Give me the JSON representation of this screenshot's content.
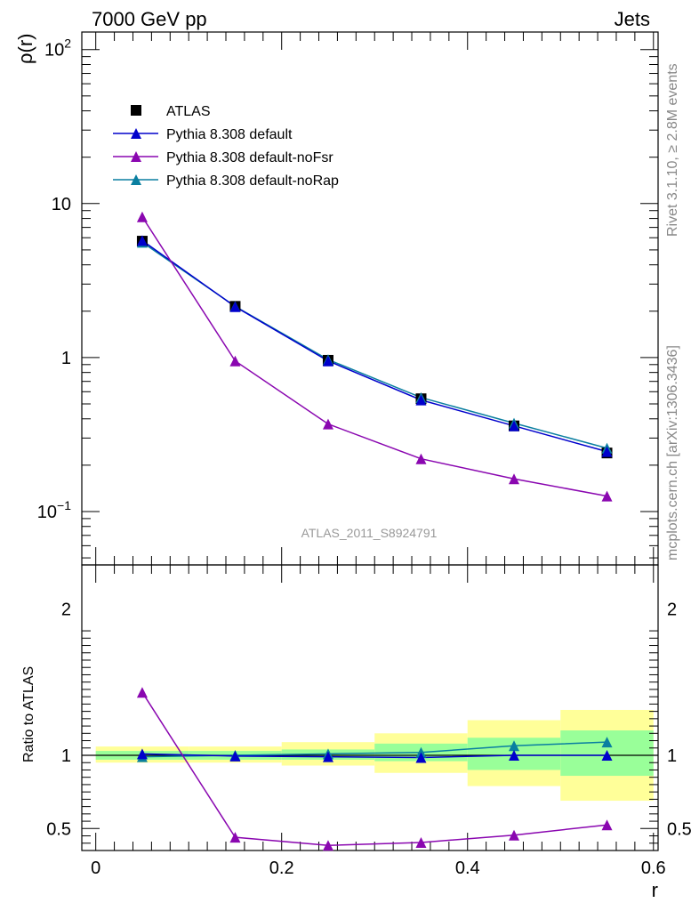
{
  "header": {
    "left_title": "7000 GeV pp",
    "right_title": "Jets"
  },
  "side": {
    "rivet_label": "Rivet 3.1.10, ≥ 2.8M events",
    "source_label": "mcplots.cern.ch [arXiv:1306.3436]"
  },
  "colors": {
    "atlas": "#000000",
    "default": "#0000cc",
    "noFsr": "#8a07b0",
    "noRap": "#0a7fa0",
    "band_outer": "#ffff99",
    "band_inner": "#99ff99"
  },
  "chart_data": [
    {
      "type": "line",
      "panel": "main",
      "ylabel": "ρ(r)",
      "yscale": "log",
      "ylim": [
        0.045,
        130
      ],
      "xlim": [
        -0.015,
        0.605
      ],
      "y_ticks": [
        {
          "value": 100,
          "base": "10",
          "exp": "2"
        },
        {
          "value": 10,
          "base": "10",
          "exp": ""
        },
        {
          "value": 1,
          "base": "1",
          "exp": ""
        },
        {
          "value": 0.1,
          "base": "10",
          "exp": "−1"
        }
      ],
      "analysis_label": "ATLAS_2011_S8924791",
      "legend_position": "top-left",
      "x": [
        0.05,
        0.15,
        0.25,
        0.35,
        0.45,
        0.55
      ],
      "data": {
        "name": "ATLAS",
        "values": [
          5.7,
          2.15,
          0.96,
          0.54,
          0.36,
          0.24
        ]
      },
      "series": [
        {
          "name": "Pythia 8.308 default",
          "key": "default",
          "values": [
            5.75,
            2.14,
            0.95,
            0.53,
            0.36,
            0.245
          ]
        },
        {
          "name": "Pythia 8.308 default-noFsr",
          "key": "noFsr",
          "values": [
            8.2,
            0.95,
            0.37,
            0.22,
            0.163,
            0.126
          ]
        },
        {
          "name": "Pythia 8.308 default-noRap",
          "key": "noRap",
          "values": [
            5.6,
            2.15,
            0.97,
            0.55,
            0.375,
            0.258
          ]
        }
      ]
    },
    {
      "type": "line",
      "panel": "ratio",
      "ylabel": "Ratio to ATLAS",
      "xlabel": "r",
      "ylim": [
        0.35,
        2.3
      ],
      "xlim": [
        -0.015,
        0.605
      ],
      "y_ticks": [
        0.5,
        1,
        2
      ],
      "y_tick_labels": [
        "0.5",
        "1",
        "2"
      ],
      "x_ticks": [
        0,
        0.2,
        0.4,
        0.6
      ],
      "x_tick_labels": [
        "0",
        "0.2",
        "0.4",
        "0.6"
      ],
      "x": [
        0.05,
        0.15,
        0.25,
        0.35,
        0.45,
        0.55
      ],
      "bands": [
        {
          "x_low": 0.0,
          "x_high": 0.1,
          "inner": [
            0.97,
            1.03
          ],
          "outer": [
            0.95,
            1.06
          ]
        },
        {
          "x_low": 0.1,
          "x_high": 0.2,
          "inner": [
            0.97,
            1.03
          ],
          "outer": [
            0.95,
            1.06
          ]
        },
        {
          "x_low": 0.2,
          "x_high": 0.3,
          "inner": [
            0.97,
            1.04
          ],
          "outer": [
            0.93,
            1.09
          ]
        },
        {
          "x_low": 0.3,
          "x_high": 0.4,
          "inner": [
            0.96,
            1.08
          ],
          "outer": [
            0.88,
            1.15
          ]
        },
        {
          "x_low": 0.4,
          "x_high": 0.5,
          "inner": [
            0.9,
            1.12
          ],
          "outer": [
            0.79,
            1.24
          ]
        },
        {
          "x_low": 0.5,
          "x_high": 0.6,
          "inner": [
            0.86,
            1.17
          ],
          "outer": [
            0.69,
            1.31
          ]
        }
      ],
      "series": [
        {
          "name": "Pythia 8.308 default",
          "key": "default",
          "values": [
            1.01,
            0.995,
            0.99,
            0.985,
            1.0,
            1.0
          ]
        },
        {
          "name": "Pythia 8.308 default-noFsr",
          "key": "noFsr",
          "values": [
            1.43,
            0.44,
            0.385,
            0.405,
            0.455,
            0.525
          ]
        },
        {
          "name": "Pythia 8.308 default-noRap",
          "key": "noRap",
          "values": [
            0.99,
            1.0,
            1.01,
            1.02,
            1.065,
            1.09
          ]
        }
      ]
    }
  ]
}
